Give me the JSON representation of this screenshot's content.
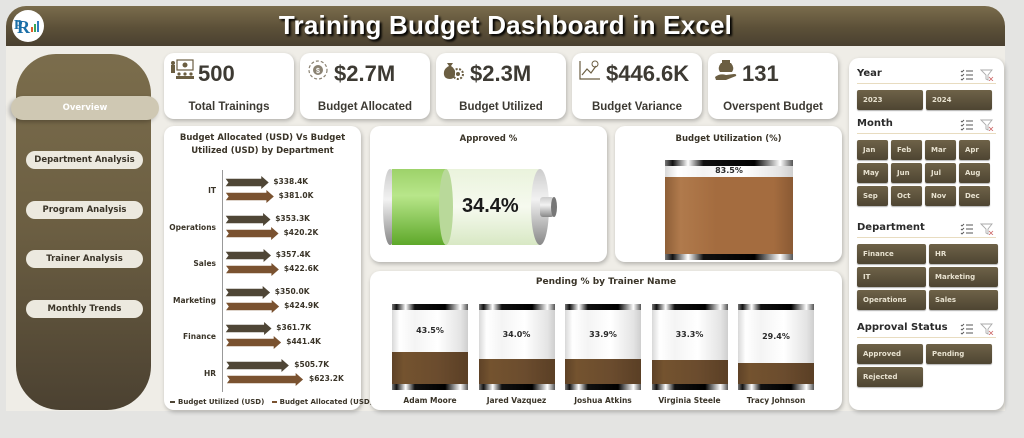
{
  "header": {
    "title": "Training Budget Dashboard in Excel",
    "logo": "pk-logo"
  },
  "sidebar": {
    "items": [
      {
        "label": "Overview",
        "active": true
      },
      {
        "label": "Department Analysis",
        "active": false
      },
      {
        "label": "Program  Analysis",
        "active": false
      },
      {
        "label": "Trainer Analysis",
        "active": false
      },
      {
        "label": "Monthly Trends",
        "active": false
      }
    ]
  },
  "kpis": [
    {
      "value": "500",
      "label": "Total Trainings",
      "icon": "training-presentation-icon"
    },
    {
      "value": "$2.7M",
      "label": "Budget Allocated",
      "icon": "budget-target-icon"
    },
    {
      "value": "$2.3M",
      "label": "Budget Utilized",
      "icon": "money-bag-gear-icon"
    },
    {
      "value": "$446.6K",
      "label": "Budget Variance",
      "icon": "variance-chart-icon"
    },
    {
      "value": "131",
      "label": "Overspent Budget",
      "icon": "hand-money-icon"
    }
  ],
  "colors": {
    "header_brown": "#5c5038",
    "utilized_arrow": "#4f4636",
    "allocated_arrow": "#7a5230",
    "battery_green": "#7cc241",
    "utilization_fill": "#a46c3f",
    "pending_fill": "#6b4c2e",
    "slicer_chip": "#5e5340"
  },
  "chart_data": [
    {
      "type": "bar",
      "orientation": "horizontal",
      "title": "Budget Allocated (USD) Vs Budget Utilized (USD) by Department",
      "categories": [
        "IT",
        "Operations",
        "Sales",
        "Marketing",
        "Finance",
        "HR"
      ],
      "series": [
        {
          "name": "Budget Utilized (USD)",
          "values": [
            338.4,
            353.3,
            357.4,
            350.0,
            361.7,
            505.7
          ],
          "labels": [
            "$338.4K",
            "$353.3K",
            "$357.4K",
            "$350.0K",
            "$361.7K",
            "$505.7K"
          ]
        },
        {
          "name": "Budget Allocated (USD)",
          "values": [
            381.0,
            420.2,
            422.6,
            424.9,
            441.4,
            623.2
          ],
          "labels": [
            "$381.0K",
            "$420.2K",
            "$422.6K",
            "$424.9K",
            "$441.4K",
            "$623.2K"
          ]
        }
      ],
      "legend": [
        "Budget Utilized (USD)",
        "Budget Allocated (USD)"
      ],
      "legend_position": "bottom",
      "units": "K USD"
    },
    {
      "type": "gauge",
      "title": "Approved %",
      "value": 34.4,
      "label": "34.4%"
    },
    {
      "type": "gauge",
      "title": "Budget Utilization (%)",
      "value": 83.5,
      "label": "83.5%"
    },
    {
      "type": "bar",
      "title": "Pending % by Trainer Name",
      "categories": [
        "Adam Moore",
        "Jared Vazquez",
        "Joshua Atkins",
        "Virginia Steele",
        "Tracy Johnson"
      ],
      "values": [
        43.5,
        34.0,
        33.9,
        33.3,
        29.4
      ],
      "labels": [
        "43.5%",
        "34.0%",
        "33.9%",
        "33.3%",
        "29.4%"
      ],
      "ylim": [
        0,
        100
      ]
    }
  ],
  "slicers": {
    "year": {
      "title": "Year",
      "options": [
        "2023",
        "2024"
      ]
    },
    "month": {
      "title": "Month",
      "options": [
        "Jan",
        "Feb",
        "Mar",
        "Apr",
        "May",
        "Jun",
        "Jul",
        "Aug",
        "Sep",
        "Oct",
        "Nov",
        "Dec"
      ]
    },
    "department": {
      "title": "Department",
      "options": [
        "Finance",
        "HR",
        "IT",
        "Marketing",
        "Operations",
        "Sales"
      ]
    },
    "approval": {
      "title": "Approval Status",
      "options": [
        "Approved",
        "Pending",
        "Rejected"
      ]
    }
  }
}
